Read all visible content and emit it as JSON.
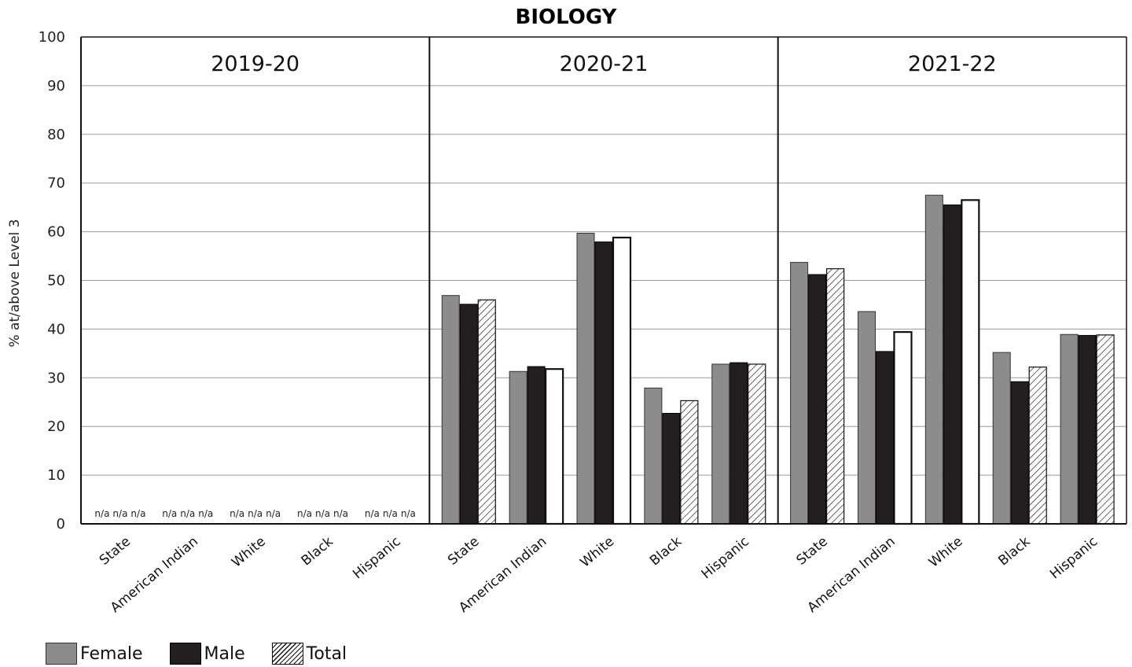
{
  "chart_data": {
    "type": "bar",
    "title": "BIOLOGY",
    "ylabel": "% at/above Level 3",
    "ylim": [
      0,
      100
    ],
    "yticks": [
      0,
      10,
      20,
      30,
      40,
      50,
      60,
      70,
      80,
      90,
      100
    ],
    "grid": true,
    "legend_position": "bottom-left",
    "categories": [
      "State",
      "American Indian",
      "White",
      "Black",
      "Hispanic"
    ],
    "series_names": [
      "Female",
      "Male",
      "Total"
    ],
    "na_label": "n/a",
    "panels": [
      {
        "year": "2019-20",
        "values": {
          "Female": [
            null,
            null,
            null,
            null,
            null
          ],
          "Male": [
            null,
            null,
            null,
            null,
            null
          ],
          "Total": [
            null,
            null,
            null,
            null,
            null
          ]
        }
      },
      {
        "year": "2020-21",
        "values": {
          "Female": [
            46.9,
            31.3,
            59.7,
            27.9,
            32.8
          ],
          "Male": [
            45.1,
            32.3,
            57.9,
            22.7,
            33.1
          ],
          "Total": [
            46.0,
            31.8,
            58.8,
            25.3,
            32.8
          ]
        }
      },
      {
        "year": "2021-22",
        "values": {
          "Female": [
            53.7,
            43.6,
            67.5,
            35.2,
            38.9
          ],
          "Male": [
            51.2,
            35.4,
            65.5,
            29.2,
            38.7
          ],
          "Total": [
            52.4,
            39.4,
            66.5,
            32.2,
            38.8
          ]
        }
      }
    ]
  },
  "colors": {
    "female": "#8c8c8c",
    "male": "#231f20",
    "total_hatch": "#111111",
    "grid": "#999999"
  }
}
